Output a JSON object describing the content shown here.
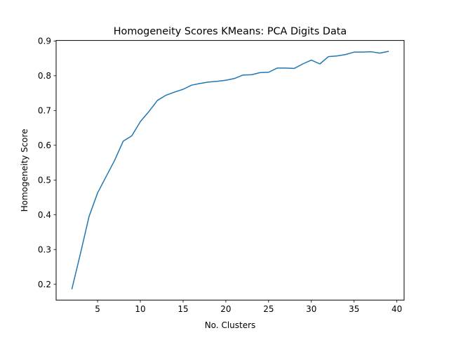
{
  "chart_data": {
    "type": "line",
    "title": "Homogeneity Scores KMeans: PCA Digits Data",
    "xlabel": "No. Clusters",
    "ylabel": "Homogeneity Score",
    "xlim": [
      0.15,
      40.85
    ],
    "ylim": [
      0.1545,
      0.9015
    ],
    "x_ticks": [
      5,
      10,
      15,
      20,
      25,
      30,
      35,
      40
    ],
    "x_tick_labels": [
      "5",
      "10",
      "15",
      "20",
      "25",
      "30",
      "35",
      "40"
    ],
    "y_ticks": [
      0.2,
      0.3,
      0.4,
      0.5,
      0.6,
      0.7,
      0.8,
      0.9
    ],
    "y_tick_labels": [
      "0.2",
      "0.3",
      "0.4",
      "0.5",
      "0.6",
      "0.7",
      "0.8",
      "0.9"
    ],
    "grid": false,
    "series_color": "#1f77b4",
    "series": [
      {
        "x": [
          2,
          3,
          4,
          5,
          6,
          7,
          8,
          9,
          10,
          11,
          12,
          13,
          14,
          15,
          16,
          17,
          18,
          19,
          20,
          21,
          22,
          23,
          24,
          25,
          26,
          27,
          28,
          29,
          30,
          31,
          32,
          33,
          34,
          35,
          36,
          37,
          38,
          39
        ],
        "values": [
          0.187,
          0.289,
          0.395,
          0.463,
          0.51,
          0.557,
          0.612,
          0.627,
          0.668,
          0.697,
          0.729,
          0.744,
          0.753,
          0.761,
          0.773,
          0.778,
          0.782,
          0.784,
          0.787,
          0.792,
          0.802,
          0.803,
          0.809,
          0.81,
          0.822,
          0.822,
          0.821,
          0.834,
          0.845,
          0.834,
          0.855,
          0.857,
          0.861,
          0.868,
          0.868,
          0.869,
          0.865,
          0.87
        ]
      }
    ]
  }
}
